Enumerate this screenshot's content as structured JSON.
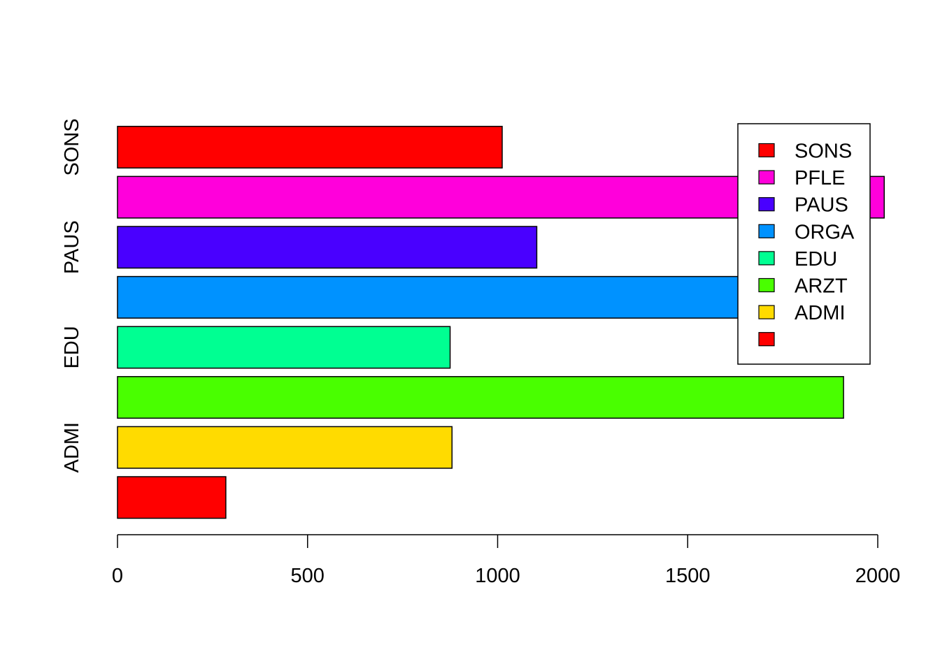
{
  "chart_data": {
    "type": "bar",
    "orientation": "horizontal",
    "categories": [
      "",
      "ADMI",
      "ARZT",
      "EDU",
      "ORGA",
      "PAUS",
      "PFLE",
      "SONS"
    ],
    "y_tick_labels": [
      "ADMI",
      "EDU",
      "PAUS",
      "SONS"
    ],
    "values": [
      285,
      880,
      1910,
      875,
      1635,
      1103,
      2017,
      1012
    ],
    "colors": [
      "#FF0000",
      "#FFDB00",
      "#49FF00",
      "#00FF92",
      "#0092FF",
      "#4900FF",
      "#FF00DB",
      "#FF0000"
    ],
    "xlim": [
      0,
      2000
    ],
    "x_ticks": [
      0,
      500,
      1000,
      1500,
      2000
    ],
    "x_tick_labels": [
      "0",
      "500",
      "1000",
      "1500",
      "2000"
    ],
    "title": "",
    "xlabel": "",
    "ylabel": "",
    "grid": false,
    "legend": {
      "position": "top-right",
      "entries": [
        {
          "label": "SONS",
          "color": "#FF0000"
        },
        {
          "label": "PFLE",
          "color": "#FF00DB"
        },
        {
          "label": "PAUS",
          "color": "#4900FF"
        },
        {
          "label": "ORGA",
          "color": "#0092FF"
        },
        {
          "label": "EDU",
          "color": "#00FF92"
        },
        {
          "label": "ARZT",
          "color": "#49FF00"
        },
        {
          "label": "ADMI",
          "color": "#FFDB00"
        },
        {
          "label": "",
          "color": "#FF0000"
        }
      ]
    }
  }
}
